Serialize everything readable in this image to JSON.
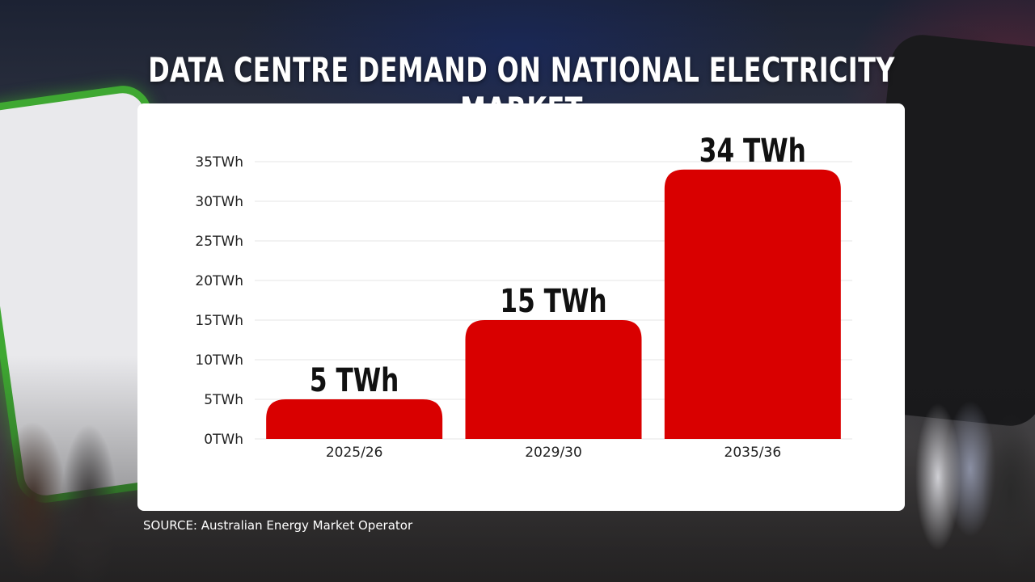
{
  "title": "DATA CENTRE DEMAND ON NATIONAL ELECTRICITY MARKET",
  "source": "SOURCE: Australian Energy Market Operator",
  "colors": {
    "bar": "#d90000",
    "card": "#ffffff",
    "grid": "#e6e6e6"
  },
  "chart_data": {
    "type": "bar",
    "categories": [
      "2025/26",
      "2029/30",
      "2035/36"
    ],
    "values": [
      5,
      15,
      34
    ],
    "data_labels": [
      "5 TWh",
      "15 TWh",
      "34 TWh"
    ],
    "unit": "TWh",
    "ylim": [
      0,
      35
    ],
    "yticks": [
      0,
      5,
      10,
      15,
      20,
      25,
      30,
      35
    ],
    "ytick_labels": [
      "0TWh",
      "5TWh",
      "10TWh",
      "15TWh",
      "20TWh",
      "25TWh",
      "30TWh",
      "35TWh"
    ],
    "grid": true,
    "legend": "none"
  }
}
